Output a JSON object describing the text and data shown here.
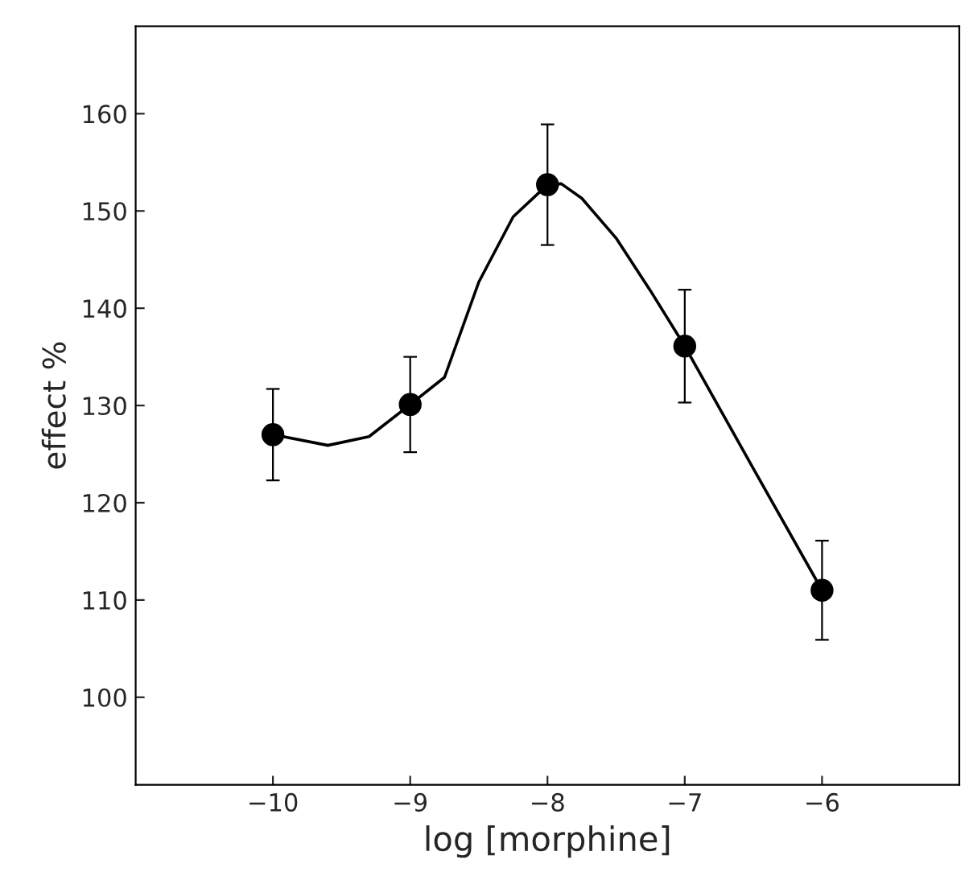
{
  "chart_data": {
    "type": "scatter",
    "xlabel": "log [morphine]",
    "ylabel": "effect %",
    "x": [
      -10,
      -9,
      -8,
      -7,
      -6
    ],
    "series": [
      {
        "color": "#000000",
        "values": [
          127,
          130.1,
          152.7,
          136.1,
          111.0
        ],
        "errors": [
          4.7,
          4.9,
          6.2,
          5.8,
          5.1
        ],
        "marker": "circle"
      },
      {
        "type": "line",
        "color": "#000000",
        "x": [
          -10,
          -9.6,
          -9.3,
          -9,
          -8.75,
          -8.5,
          -8.25,
          -8,
          -7.9,
          -7.75,
          -7.5,
          -7.25,
          -7,
          -6.5,
          -6
        ],
        "values": [
          127,
          125.9,
          126.8,
          130.1,
          132.9,
          142.7,
          149.4,
          152.7,
          152.8,
          151.3,
          147.2,
          141.8,
          136.1,
          123.5,
          111.0
        ],
        "marker": "none",
        "line_style": "solid"
      }
    ],
    "xlim": [
      -11,
      -5
    ],
    "ylim": [
      91,
      169
    ],
    "xticks": [
      {
        "value": -10,
        "label": "−10"
      },
      {
        "value": -9,
        "label": "−9"
      },
      {
        "value": -8,
        "label": "−8"
      },
      {
        "value": -7,
        "label": "−7"
      },
      {
        "value": -6,
        "label": "−6"
      }
    ],
    "yticks": [
      100,
      110,
      120,
      130,
      140,
      150,
      160
    ],
    "grid": false,
    "legend": false
  }
}
